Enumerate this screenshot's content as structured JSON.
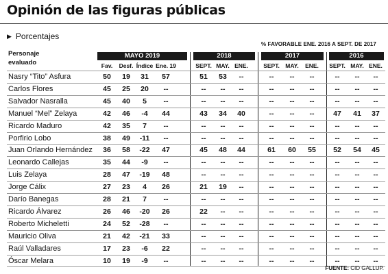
{
  "title": "Opinión de las figuras públicas",
  "subtitle": "Porcentajes",
  "note": "% FAVORABLE ENE. 2016 A SEPT. DE 2017",
  "source_label": "FUENTE:",
  "source_value": "CID GALLUP.",
  "chart_data": {
    "type": "table",
    "row_header": [
      "Personaje",
      "evaluado"
    ],
    "groups": [
      {
        "label": "MAYO 2019",
        "columns": [
          "Fav.",
          "Desf.",
          "Índice",
          "Ene. 19"
        ]
      },
      {
        "label": "2018",
        "columns": [
          "SEPT.",
          "MAY.",
          "ENE."
        ]
      },
      {
        "label": "2017",
        "columns": [
          "SEPT.",
          "MAY.",
          "ENE."
        ]
      },
      {
        "label": "2016",
        "columns": [
          "SEPT.",
          "MAY.",
          "ENE."
        ]
      }
    ],
    "rows": [
      {
        "name": "Nasry “Tito” Asfura",
        "values": [
          "50",
          "19",
          "31",
          "57",
          "51",
          "53",
          "--",
          "--",
          "--",
          "--",
          "--",
          "--",
          "--"
        ]
      },
      {
        "name": "Carlos Flores",
        "values": [
          "45",
          "25",
          "20",
          "--",
          "--",
          "--",
          "--",
          "--",
          "--",
          "--",
          "--",
          "--",
          "--"
        ]
      },
      {
        "name": "Salvador Nasralla",
        "values": [
          "45",
          "40",
          "5",
          "--",
          "--",
          "--",
          "--",
          "--",
          "--",
          "--",
          "--",
          "--",
          "--"
        ]
      },
      {
        "name": "Manuel “Mel” Zelaya",
        "values": [
          "42",
          "46",
          "-4",
          "44",
          "43",
          "34",
          "40",
          "--",
          "--",
          "--",
          "47",
          "41",
          "37"
        ]
      },
      {
        "name": "Ricardo Maduro",
        "values": [
          "42",
          "35",
          "7",
          "--",
          "--",
          "--",
          "--",
          "--",
          "--",
          "--",
          "--",
          "--",
          "--"
        ]
      },
      {
        "name": "Porfirio Lobo",
        "values": [
          "38",
          "49",
          "-11",
          "--",
          "--",
          "--",
          "--",
          "--",
          "--",
          "--",
          "--",
          "--",
          "--"
        ]
      },
      {
        "name": "Juan Orlando Hernández",
        "values": [
          "36",
          "58",
          "-22",
          "47",
          "45",
          "48",
          "44",
          "61",
          "60",
          "55",
          "52",
          "54",
          "45"
        ]
      },
      {
        "name": "Leonardo Callejas",
        "values": [
          "35",
          "44",
          "-9",
          "--",
          "--",
          "--",
          "--",
          "--",
          "--",
          "--",
          "--",
          "--",
          "--"
        ]
      },
      {
        "name": "Luis Zelaya",
        "values": [
          "28",
          "47",
          "-19",
          "48",
          "--",
          "--",
          "--",
          "--",
          "--",
          "--",
          "--",
          "--",
          "--"
        ]
      },
      {
        "name": "Jorge Cálix",
        "values": [
          "27",
          "23",
          "4",
          "26",
          "21",
          "19",
          "--",
          "--",
          "--",
          "--",
          "--",
          "--",
          "--"
        ]
      },
      {
        "name": "Darío Banegas",
        "values": [
          "28",
          "21",
          "7",
          "--",
          "--",
          "--",
          "--",
          "--",
          "--",
          "--",
          "--",
          "--",
          "--"
        ]
      },
      {
        "name": "Ricardo Álvarez",
        "values": [
          "26",
          "46",
          "-20",
          "26",
          "22",
          "--",
          "--",
          "--",
          "--",
          "--",
          "--",
          "--",
          "--"
        ]
      },
      {
        "name": "Roberto Micheletti",
        "values": [
          "24",
          "52",
          "-28",
          "--",
          "--",
          "--",
          "--",
          "--",
          "--",
          "--",
          "--",
          "--",
          "--"
        ]
      },
      {
        "name": "Mauricio Oliva",
        "values": [
          "21",
          "42",
          "-21",
          "33",
          "--",
          "--",
          "--",
          "--",
          "--",
          "--",
          "--",
          "--",
          "--"
        ]
      },
      {
        "name": "Raúl Valladares",
        "values": [
          "17",
          "23",
          "-6",
          "22",
          "--",
          "--",
          "--",
          "--",
          "--",
          "--",
          "--",
          "--",
          "--"
        ]
      },
      {
        "name": "Óscar Melara",
        "values": [
          "10",
          "19",
          "-9",
          "--",
          "--",
          "--",
          "--",
          "--",
          "--",
          "--",
          "--",
          "--",
          "--"
        ]
      }
    ]
  }
}
